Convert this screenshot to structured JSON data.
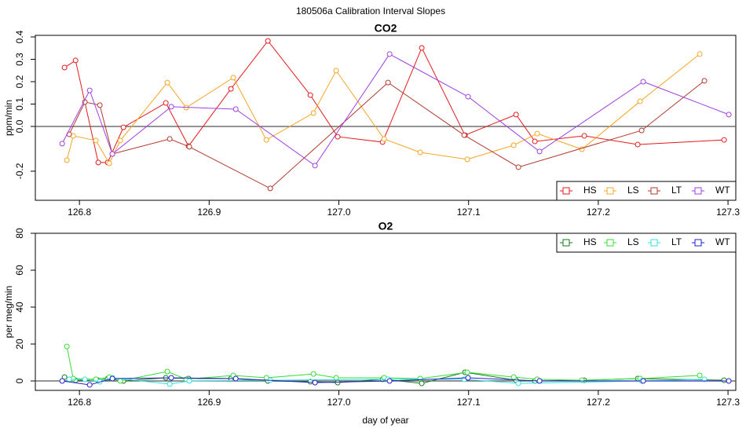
{
  "title": "180506a   Calibration Interval Slopes",
  "chart_data": [
    {
      "type": "line",
      "title": "CO2",
      "ylabel": "ppm/min",
      "xlim": [
        126.766,
        127.306
      ],
      "xticks": [
        126.8,
        126.9,
        {
          "value": 127,
          "label": "127.0"
        },
        127.1,
        127.2,
        127.3
      ],
      "ylim": [
        -0.33,
        0.407
      ],
      "yticks": [
        -0.2,
        {
          "value": 0,
          "label": "0.0"
        },
        0.1,
        0.2,
        0.3,
        0.4
      ],
      "reference_line": 0,
      "legend": "bottomright",
      "series": [
        {
          "name": "HS",
          "color": "#e41a1c",
          "x": [
            126.7885,
            126.797,
            126.8145,
            126.8218,
            126.8339,
            126.8666,
            126.8841,
            126.9168,
            126.9453,
            126.978,
            126.9991,
            127.0337,
            127.0639,
            127.0972,
            127.1366,
            127.1511,
            127.1892,
            127.2304,
            127.297
          ],
          "values": [
            0.263,
            0.295,
            -0.161,
            -0.161,
            -0.004,
            0.105,
            -0.088,
            0.168,
            0.382,
            0.14,
            -0.046,
            -0.07,
            0.351,
            -0.039,
            0.053,
            -0.067,
            -0.042,
            -0.081,
            -0.06
          ]
        },
        {
          "name": "LS",
          "color": "#f5a623",
          "x": [
            126.7903,
            126.7952,
            126.8127,
            126.823,
            126.8315,
            126.8678,
            126.8823,
            126.9186,
            126.9441,
            126.9804,
            126.9979,
            127.0349,
            127.0627,
            127.099,
            127.1348,
            127.1529,
            127.1874,
            127.2322,
            127.2782
          ],
          "values": [
            -0.151,
            -0.042,
            -0.063,
            -0.165,
            -0.063,
            0.196,
            0.084,
            0.218,
            -0.06,
            0.06,
            0.249,
            -0.056,
            -0.116,
            -0.147,
            -0.084,
            -0.032,
            -0.102,
            0.112,
            0.323
          ]
        },
        {
          "name": "LT",
          "color": "#b03a2e",
          "x": [
            126.7921,
            126.8042,
            126.8157,
            126.8254,
            126.8696,
            126.8847,
            126.9471,
            127.0379,
            127.0966,
            127.1384,
            127.2334,
            127.2818
          ],
          "values": [
            -0.035,
            0.109,
            0.095,
            -0.123,
            -0.056,
            -0.091,
            -0.277,
            0.196,
            -0.039,
            -0.182,
            -0.018,
            0.204
          ]
        },
        {
          "name": "WT",
          "color": "#a040e0",
          "x": [
            126.7867,
            126.8079,
            126.8254,
            126.8708,
            126.9205,
            126.9816,
            127.0391,
            127.0996,
            127.1547,
            127.2346,
            127.3006
          ],
          "values": [
            -0.077,
            0.161,
            -0.123,
            0.088,
            0.077,
            -0.175,
            0.323,
            0.133,
            -0.112,
            0.2,
            0.053
          ]
        }
      ]
    },
    {
      "type": "line",
      "title": "O2",
      "ylabel": "per meg/min",
      "xlabel": "day of year",
      "xlim": [
        126.766,
        127.306
      ],
      "xticks": [
        126.8,
        126.9,
        {
          "value": 127,
          "label": "127.0"
        },
        127.1,
        127.2,
        127.3
      ],
      "ylim": [
        -5.1,
        80
      ],
      "yticks": [
        0,
        20,
        40,
        60,
        80
      ],
      "reference_line": 0,
      "legend": "topright",
      "series": [
        {
          "name": "HS",
          "color": "#1a7a1a",
          "x": [
            126.7885,
            126.797,
            126.8145,
            126.8218,
            126.8339,
            126.8666,
            126.8841,
            126.9168,
            126.9453,
            126.978,
            126.9991,
            127.0337,
            127.0639,
            127.0972,
            127.1366,
            127.1511,
            127.1892,
            127.2304,
            127.297
          ],
          "values": [
            2.1,
            0.4,
            0.4,
            1.3,
            0,
            1.7,
            1.3,
            1.3,
            0,
            -0.4,
            -0.9,
            0.9,
            -1.3,
            4.7,
            0.4,
            0,
            0.4,
            1.3,
            0.4
          ]
        },
        {
          "name": "LS",
          "color": "#33dd33",
          "x": [
            126.7903,
            126.7952,
            126.8127,
            126.823,
            126.8315,
            126.8678,
            126.8823,
            126.9186,
            126.9441,
            126.9804,
            126.9979,
            127.0349,
            127.0627,
            127.099,
            127.1348,
            127.1529,
            127.1874,
            127.2322,
            127.2782
          ],
          "values": [
            18.7,
            1.3,
            0.9,
            2.1,
            0,
            5.1,
            0.9,
            3,
            1.7,
            3.8,
            1.7,
            1.7,
            1.3,
            4.7,
            2.1,
            0.9,
            0.4,
            1.3,
            3
          ]
        },
        {
          "name": "LT",
          "color": "#33e0e0",
          "x": [
            126.7921,
            126.8042,
            126.8157,
            126.8254,
            126.8696,
            126.8847,
            126.9471,
            127.0379,
            127.0966,
            127.1384,
            127.2334,
            127.2818
          ],
          "values": [
            0.9,
            0.9,
            -0.4,
            1.7,
            -1.7,
            0,
            0.4,
            0.9,
            0.9,
            -1.3,
            0,
            0.9
          ]
        },
        {
          "name": "WT",
          "color": "#2222cc",
          "x": [
            126.7867,
            126.8079,
            126.8254,
            126.8708,
            126.9205,
            126.9816,
            127.0391,
            127.0996,
            127.1547,
            127.2346,
            127.3006
          ],
          "values": [
            0,
            -2.1,
            1.3,
            1.7,
            1.3,
            -0.9,
            0,
            1.7,
            0,
            0,
            0
          ]
        }
      ]
    }
  ]
}
